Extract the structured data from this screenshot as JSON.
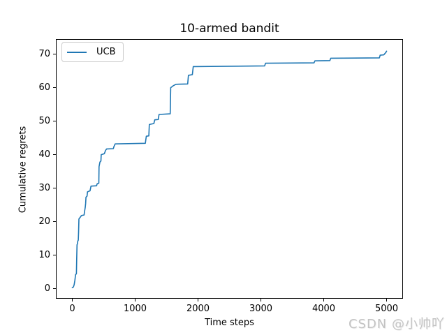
{
  "figure": {
    "background": "#ffffff",
    "watermark": "CSDN @小帅吖"
  },
  "chart_data": {
    "type": "line",
    "title": "10-armed bandit",
    "xlabel": "Time steps",
    "ylabel": "Cumulative regrets",
    "grid": false,
    "xlim": [
      -250,
      5250
    ],
    "ylim": [
      -2.8,
      74.3
    ],
    "x_ticks": [
      0,
      1000,
      2000,
      3000,
      4000,
      5000
    ],
    "y_ticks": [
      0,
      10,
      20,
      30,
      40,
      50,
      60,
      70
    ],
    "legend": {
      "position": "upper left",
      "entries": [
        {
          "label": "UCB",
          "color": "#1f77b4"
        }
      ]
    },
    "series": [
      {
        "name": "UCB",
        "color": "#1f77b4",
        "points": [
          [
            0,
            0.3
          ],
          [
            18,
            0.5
          ],
          [
            30,
            1.2
          ],
          [
            42,
            2.6
          ],
          [
            52,
            4.2
          ],
          [
            66,
            4.4
          ],
          [
            70,
            8.8
          ],
          [
            76,
            13.1
          ],
          [
            82,
            13.4
          ],
          [
            88,
            14.2
          ],
          [
            96,
            14.5
          ],
          [
            100,
            16.8
          ],
          [
            106,
            20.8
          ],
          [
            122,
            21.2
          ],
          [
            145,
            21.8
          ],
          [
            188,
            22.0
          ],
          [
            196,
            23.1
          ],
          [
            205,
            24.2
          ],
          [
            212,
            25.4
          ],
          [
            218,
            27.3
          ],
          [
            234,
            27.6
          ],
          [
            242,
            28.9
          ],
          [
            282,
            29.2
          ],
          [
            298,
            30.6
          ],
          [
            386,
            30.7
          ],
          [
            396,
            31.3
          ],
          [
            422,
            31.5
          ],
          [
            426,
            36.4
          ],
          [
            440,
            37.8
          ],
          [
            456,
            38.1
          ],
          [
            460,
            40.0
          ],
          [
            510,
            40.3
          ],
          [
            530,
            41.3
          ],
          [
            546,
            41.7
          ],
          [
            652,
            41.8
          ],
          [
            664,
            42.5
          ],
          [
            682,
            43.2
          ],
          [
            1162,
            43.4
          ],
          [
            1170,
            44.5
          ],
          [
            1178,
            45.5
          ],
          [
            1218,
            45.6
          ],
          [
            1226,
            49.0
          ],
          [
            1298,
            49.3
          ],
          [
            1312,
            50.4
          ],
          [
            1368,
            50.5
          ],
          [
            1380,
            52.0
          ],
          [
            1558,
            52.2
          ],
          [
            1566,
            60.0
          ],
          [
            1600,
            60.5
          ],
          [
            1648,
            61.0
          ],
          [
            1836,
            61.1
          ],
          [
            1848,
            63.7
          ],
          [
            1910,
            63.9
          ],
          [
            1924,
            66.3
          ],
          [
            3060,
            66.5
          ],
          [
            3074,
            67.3
          ],
          [
            3846,
            67.4
          ],
          [
            3860,
            68.0
          ],
          [
            4098,
            68.1
          ],
          [
            4112,
            68.8
          ],
          [
            4886,
            68.9
          ],
          [
            4898,
            69.7
          ],
          [
            4956,
            69.8
          ],
          [
            4988,
            70.5
          ],
          [
            5000,
            70.9
          ]
        ]
      }
    ]
  }
}
